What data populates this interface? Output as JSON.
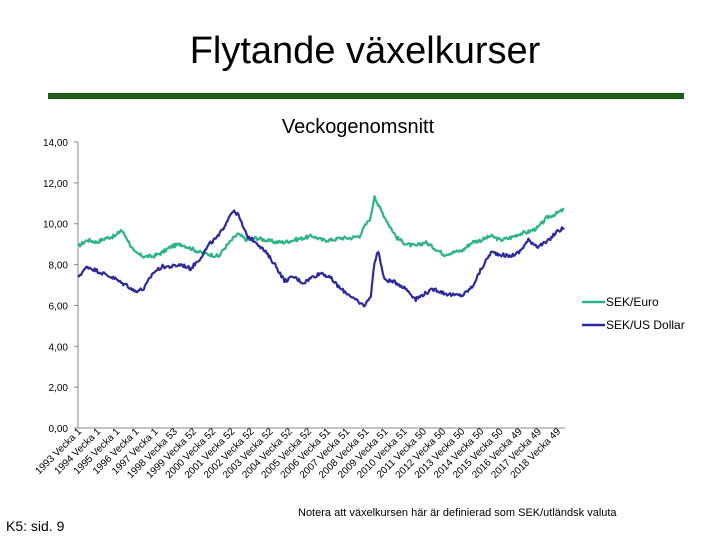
{
  "slide": {
    "title": "Flytande växelkurser",
    "source": "K5: sid. 9",
    "note": "Notera att växelkursen här är definierad som SEK/utländsk valuta"
  },
  "colors": {
    "sek_euro": "#2db38a",
    "sek_usd": "#2b2b9a",
    "title_rule": "#1a5c1a"
  },
  "chart_data": {
    "type": "line",
    "title": "Veckogenomsnitt",
    "ylim": [
      0,
      14
    ],
    "yticks": [
      "0,00",
      "2,00",
      "4,00",
      "6,00",
      "8,00",
      "10,00",
      "12,00",
      "14,00"
    ],
    "legend": "right",
    "categories": [
      "1993 Vecka 1",
      "1994 Vecka 1",
      "1995 Vecka 1",
      "1996 Vecka 1",
      "1997 Vecka 1",
      "1998 Vecka 53",
      "1999 Vecka 52",
      "2000 Vecka 52",
      "2001 Vecka 52",
      "2002 Vecka 52",
      "2003 Vecka 52",
      "2004 Vecka 52",
      "2005 Vecka 52",
      "2006 Vecka 51",
      "2007 Vecka 51",
      "2008 Vecka 51",
      "2009 Vecka 51",
      "2010 Vecka 51",
      "2011 Vecka 50",
      "2012 Vecka 50",
      "2013 Vecka 50",
      "2014 Vecka 50",
      "2015 Vecka 50",
      "2016 Vecka 49",
      "2017 Vecka 49",
      "2018 Vecka 49"
    ],
    "x": [
      1993.0,
      1993.5,
      1994.0,
      1994.5,
      1995.0,
      1995.3,
      1995.6,
      1996.0,
      1996.5,
      1997.0,
      1997.5,
      1998.0,
      1998.5,
      1999.0,
      1999.5,
      2000.0,
      2000.5,
      2000.8,
      2001.2,
      2001.5,
      2002.0,
      2002.5,
      2003.0,
      2003.5,
      2004.0,
      2004.5,
      2005.0,
      2005.5,
      2006.0,
      2006.5,
      2007.0,
      2007.5,
      2008.0,
      2008.3,
      2008.6,
      2008.8,
      2009.0,
      2009.3,
      2009.6,
      2010.0,
      2010.5,
      2011.0,
      2011.5,
      2012.0,
      2012.5,
      2013.0,
      2013.5,
      2014.0,
      2014.5,
      2015.0,
      2015.5,
      2016.0,
      2016.5,
      2017.0,
      2017.5,
      2018.0,
      2018.5,
      2018.9
    ],
    "series": [
      {
        "name": "SEK/Euro",
        "values": [
          8.9,
          9.2,
          9.1,
          9.3,
          9.4,
          9.7,
          9.3,
          8.6,
          8.4,
          8.4,
          8.6,
          8.9,
          9.0,
          8.8,
          8.6,
          8.5,
          8.4,
          8.8,
          9.2,
          9.5,
          9.2,
          9.3,
          9.2,
          9.1,
          9.1,
          9.2,
          9.3,
          9.4,
          9.2,
          9.2,
          9.3,
          9.3,
          9.4,
          9.9,
          10.3,
          11.4,
          10.9,
          10.4,
          9.9,
          9.3,
          9.0,
          8.9,
          9.1,
          8.8,
          8.5,
          8.6,
          8.7,
          9.1,
          9.2,
          9.4,
          9.2,
          9.3,
          9.5,
          9.6,
          9.8,
          10.3,
          10.5,
          10.7
        ]
      },
      {
        "name": "SEK/US Dollar",
        "values": [
          7.4,
          7.9,
          7.7,
          7.5,
          7.3,
          7.1,
          7.0,
          6.7,
          6.8,
          7.6,
          7.9,
          7.9,
          8.0,
          7.8,
          8.3,
          9.0,
          9.4,
          9.9,
          10.6,
          10.5,
          9.4,
          9.1,
          8.6,
          8.0,
          7.2,
          7.4,
          7.1,
          7.4,
          7.6,
          7.3,
          6.8,
          6.5,
          6.1,
          6.0,
          6.5,
          8.1,
          8.7,
          7.3,
          7.2,
          7.1,
          6.8,
          6.3,
          6.6,
          6.8,
          6.6,
          6.5,
          6.5,
          6.9,
          7.8,
          8.6,
          8.5,
          8.4,
          8.6,
          9.2,
          8.9,
          9.1,
          9.6,
          9.8
        ]
      }
    ]
  }
}
